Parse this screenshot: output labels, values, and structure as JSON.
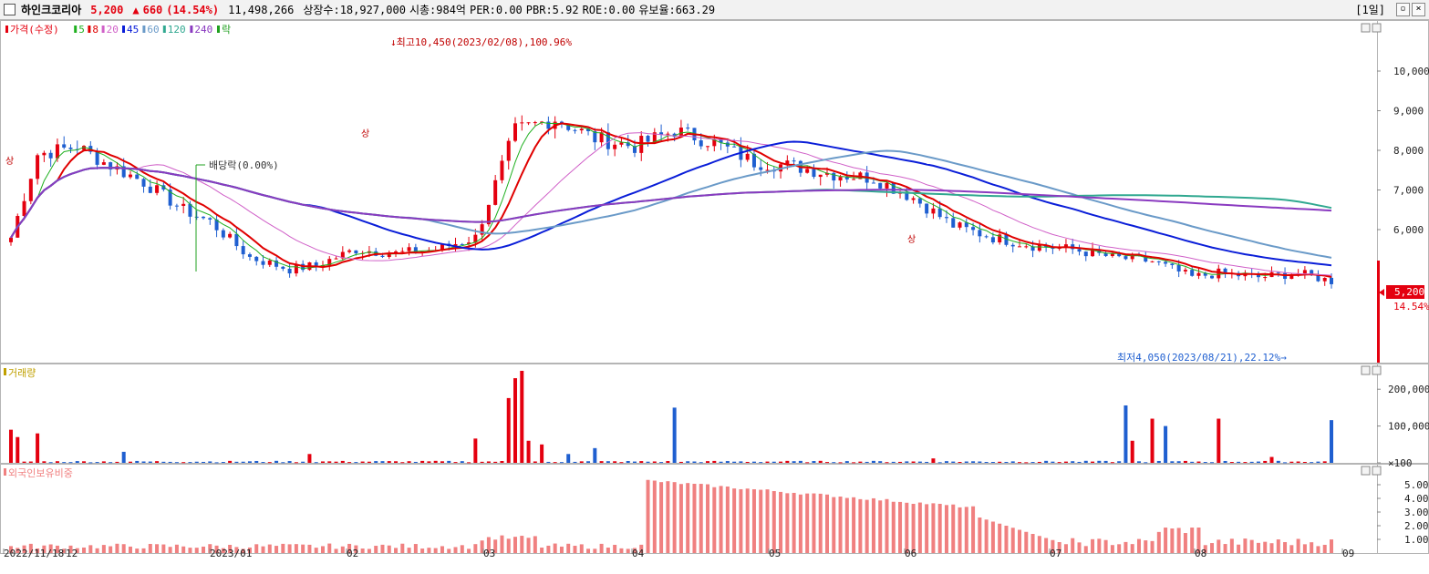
{
  "header": {
    "name": "하인크코리아",
    "price": "5,200",
    "arrow": "▲",
    "change": "660",
    "change_pct": "(14.54%)",
    "volume": "11,498,266",
    "shares": "상장수:18,927,000",
    "market_cap": "시총:984억",
    "per": "PER:0.00",
    "pbr": "PBR:5.92",
    "roe": "ROE:0.00",
    "float": "유보율:663.29",
    "period": "[1일]"
  },
  "colors": {
    "up": "#e4000f",
    "down": "#1f5fd0",
    "ma5": "#20b020",
    "ma8": "#e00000",
    "ma20": "#d060c8",
    "ma45": "#0a1ed8",
    "ma60": "#6a9ac8",
    "ma120": "#30a890",
    "ma240": "#8a3ac0",
    "foreign": "#f08080"
  },
  "chart_data": [
    {
      "type": "candlestick",
      "legend": [
        {
          "label": "가격(수정)",
          "color": "#e4000f"
        },
        {
          "label": "5",
          "color": "#20b020"
        },
        {
          "label": "8",
          "color": "#e00000"
        },
        {
          "label": "20",
          "color": "#d060c8"
        },
        {
          "label": "45",
          "color": "#0a1ed8"
        },
        {
          "label": "60",
          "color": "#6a9ac8"
        },
        {
          "label": "120",
          "color": "#30a890"
        },
        {
          "label": "240",
          "color": "#8a3ac0"
        },
        {
          "label": "락",
          "color": "#20a020"
        }
      ],
      "y_ticks": [
        6000,
        7000,
        8000,
        9000,
        10000
      ],
      "y_tick_labels": [
        "6,000",
        "7,000",
        "8,000",
        "9,000",
        "10,000"
      ],
      "ylim": [
        3900,
        10700
      ],
      "annotations": {
        "high": "최고10,450(2023/02/08),100.96%",
        "low": "최저4,050(2023/08/21),22.12%",
        "dividend": "배당락(0.00%)",
        "limit_up": "상"
      },
      "current_price_label": "5,200",
      "current_pct_label": "14.54%"
    },
    {
      "type": "bar",
      "title": "거래량",
      "y_tick_labels": [
        "200,000",
        "100,000",
        "×100"
      ],
      "y_ticks": [
        200000,
        100000,
        0
      ]
    },
    {
      "type": "bar",
      "title": "외국인보유비중",
      "y_tick_labels": [
        "5.00",
        "4.00",
        "3.00",
        "2.00",
        "1.00"
      ],
      "y_ticks": [
        5,
        4,
        3,
        2,
        1
      ]
    }
  ],
  "x_axis": {
    "labels": [
      "2022/11/18",
      "12",
      "2023/01",
      "02",
      "03",
      "04",
      "05",
      "06",
      "07",
      "08",
      "09"
    ]
  }
}
